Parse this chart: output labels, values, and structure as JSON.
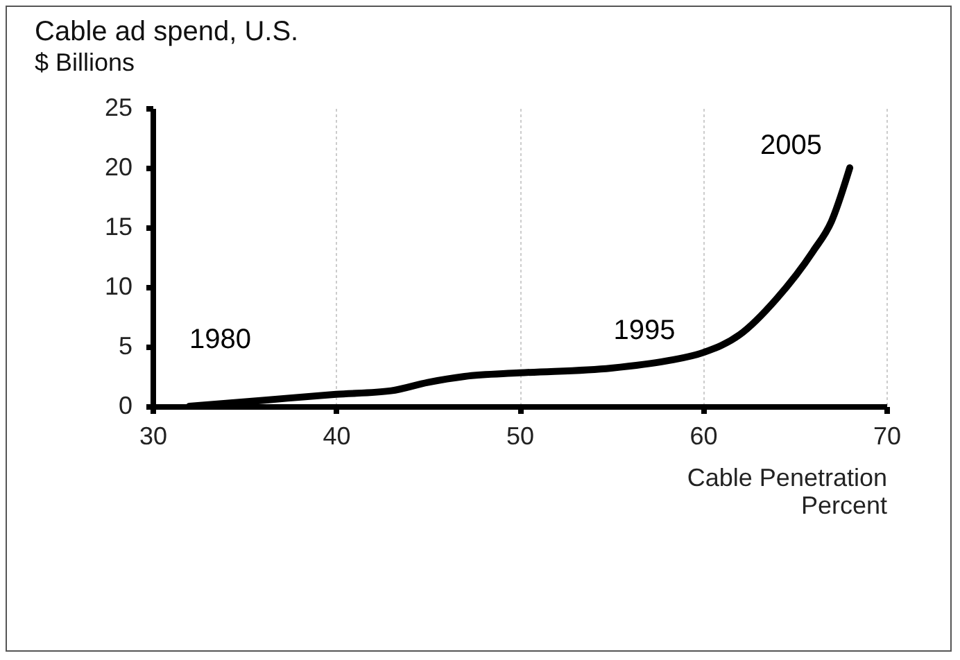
{
  "chart_data": {
    "type": "line",
    "title": "Cable ad spend, U.S.",
    "subtitle": "$ Billions",
    "xlabel": "Cable Penetration\nPercent",
    "x": [
      32,
      36,
      40,
      43,
      45,
      47,
      50,
      55,
      58,
      60,
      62,
      64,
      66,
      67,
      68
    ],
    "series": [
      {
        "color": "#000000",
        "values": [
          0,
          0.5,
          1.0,
          1.3,
          2.0,
          2.5,
          2.8,
          3.2,
          3.8,
          4.5,
          6,
          9,
          13,
          15.5,
          20
        ]
      }
    ],
    "annotations": [
      {
        "text": "1980",
        "x": 32,
        "y": 0
      },
      {
        "text": "1995",
        "x": 60,
        "y": 4.5
      },
      {
        "text": "2005",
        "x": 68,
        "y": 20
      }
    ],
    "xlim": [
      30,
      70
    ],
    "xticks": [
      30,
      40,
      50,
      60,
      70
    ],
    "ylim": [
      0,
      25
    ],
    "yticks": [
      0,
      5,
      10,
      15,
      20,
      25
    ],
    "grid": "x",
    "marker": "none",
    "line_style": "solid"
  }
}
